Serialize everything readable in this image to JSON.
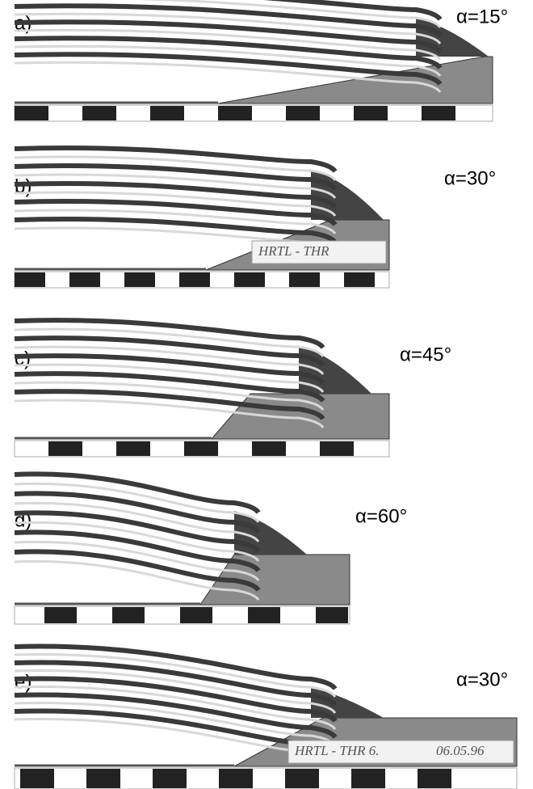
{
  "panels": [
    {
      "label": "a)",
      "angle": "α=15°"
    },
    {
      "label": "b)",
      "angle": "α=30°",
      "plate": "HRTL  -  THR"
    },
    {
      "label": "c)",
      "angle": "α=45°"
    },
    {
      "label": "d)",
      "angle": "α=60°"
    },
    {
      "label": "e)",
      "angle": "α=30°",
      "plate": "HRTL  -  THR  6.",
      "date": "06.05.96"
    }
  ]
}
